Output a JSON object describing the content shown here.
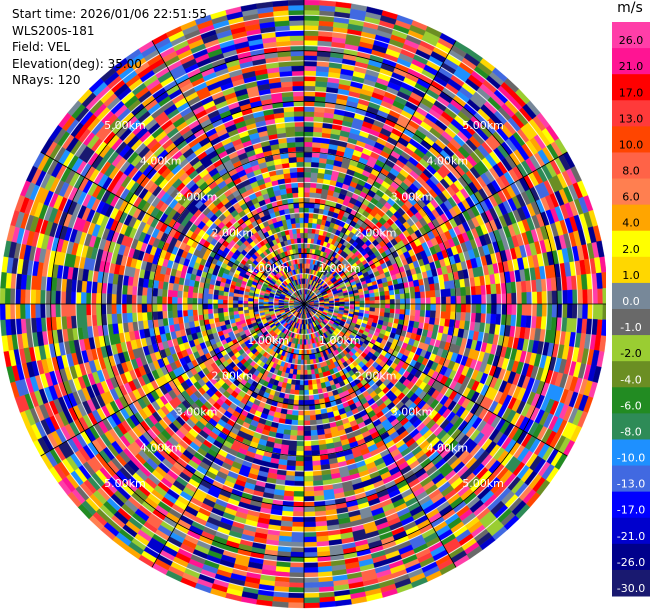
{
  "header": {
    "start_time": "Start time: 2026/01/06 22:51:55",
    "instrument": "WLS200s-181",
    "field": "Field: VEL",
    "elevation": "Elevation(deg): 35.00",
    "nrays": "NRays: 120"
  },
  "chart_data": {
    "type": "heatmap",
    "projection": "polar-ppi",
    "field": "VEL",
    "units": "m/s",
    "elevation_deg": 35.0,
    "nrays": 120,
    "range_km": [
      0,
      6.0
    ],
    "range_ring_labels": [
      "1.00km",
      "2.00km",
      "3.00km",
      "4.00km",
      "5.00km"
    ],
    "colorbar": {
      "title": "m/s",
      "tick_labels": [
        "26.0",
        "21.0",
        "17.0",
        "13.0",
        "10.0",
        "8.0",
        "6.0",
        "4.0",
        "2.0",
        "1.0",
        "0.0",
        "-1.0",
        "-2.0",
        "-4.0",
        "-6.0",
        "-8.0",
        "-10.0",
        "-13.0",
        "-17.0",
        "-21.0",
        "-26.0",
        "-30.0"
      ],
      "bin_colors": [
        "#ff3ea8",
        "#ff1493",
        "#ff0000",
        "#ff3a3a",
        "#ff4500",
        "#ff6347",
        "#ff7f50",
        "#ffa500",
        "#ffff00",
        "#ffd700",
        "#778899",
        "#696969",
        "#9acd32",
        "#6b8e23",
        "#228b22",
        "#2e8b57",
        "#1e90ff",
        "#4169e1",
        "#0000ff",
        "#0000cd",
        "#00008b",
        "#191970"
      ]
    }
  }
}
